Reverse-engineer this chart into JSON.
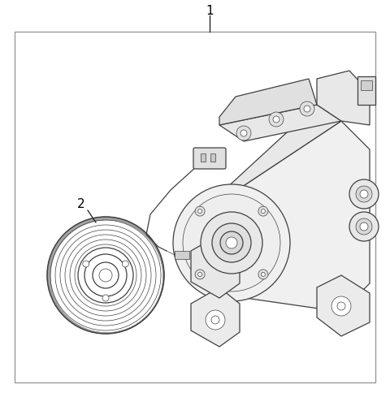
{
  "bg_color": "#ffffff",
  "border_color": "#aaaaaa",
  "lc": "#404040",
  "lc2": "#555555",
  "lc_light": "#888888",
  "label1": "1",
  "label2": "2",
  "figsize": [
    4.8,
    4.85
  ],
  "dpi": 100,
  "lw_main": 0.9,
  "lw_thin": 0.5,
  "lw_thick": 1.1
}
